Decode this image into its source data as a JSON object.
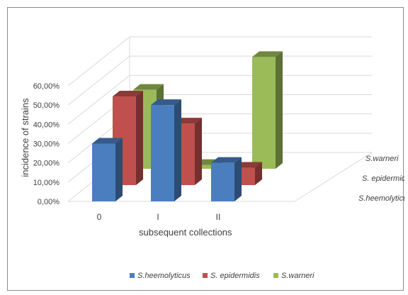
{
  "chart_data": {
    "type": "bar",
    "subtype": "3d-clustered-depth",
    "categories": [
      "0",
      "I",
      "II"
    ],
    "series": [
      {
        "name": "S.heemolyticus",
        "color": "#4a7ebf",
        "values": [
          0.3,
          0.5,
          0.2
        ]
      },
      {
        "name": "S. epidermidis",
        "color": "#c0504d",
        "values": [
          0.46,
          0.32,
          0.09
        ]
      },
      {
        "name": "S.warneri",
        "color": "#9bbb59",
        "values": [
          0.41,
          0.02,
          0.58
        ]
      }
    ],
    "y_ticks": [
      "0,00%",
      "10,00%",
      "20,00%",
      "30,00%",
      "40,00%",
      "50,00%",
      "60,00%"
    ],
    "ylim": [
      0,
      0.6
    ],
    "xlabel": "subsequent collections",
    "ylabel": "incidence of strains",
    "depth_labels": [
      "S.warneri",
      "S. epidermidis",
      "S.heemolyticus"
    ],
    "legend": [
      "S.heemolyticus",
      "S. epidermidis",
      "S.warneri"
    ],
    "legend_position": "bottom",
    "grid": true
  }
}
